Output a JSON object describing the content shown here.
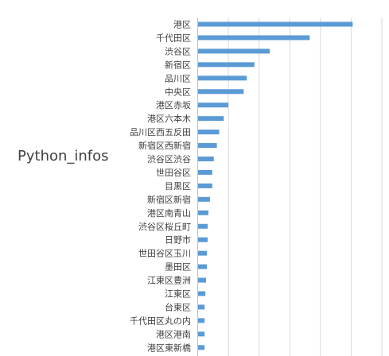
{
  "chart_data": {
    "type": "bar",
    "orientation": "horizontal",
    "title": "Python_infos",
    "xlabel": "",
    "ylabel": "",
    "xlim": [
      0,
      120
    ],
    "grid": true,
    "legend": "none",
    "bar_color": "#5b9bd5",
    "categories": [
      "港区",
      "千代田区",
      "渋谷区",
      "新宿区",
      "品川区",
      "中央区",
      "港区赤坂",
      "港区六本木",
      "品川区西五反田",
      "新宿区西新宿",
      "渋谷区渋谷",
      "世田谷区",
      "目黒区",
      "新宿区新宿",
      "港区南青山",
      "渋谷区桜丘町",
      "日野市",
      "世田谷区玉川",
      "墨田区",
      "江東区豊洲",
      "江東区",
      "台東区",
      "千代田区丸の内",
      "港区港南",
      "港区東新橋"
    ],
    "values": [
      101,
      73,
      47,
      37,
      32,
      30,
      20,
      17,
      14,
      12.5,
      10.5,
      9.5,
      9.5,
      8,
      7,
      6.5,
      6.5,
      6,
      6,
      5.5,
      5,
      4.5,
      4.5,
      4.5,
      4.5
    ]
  }
}
